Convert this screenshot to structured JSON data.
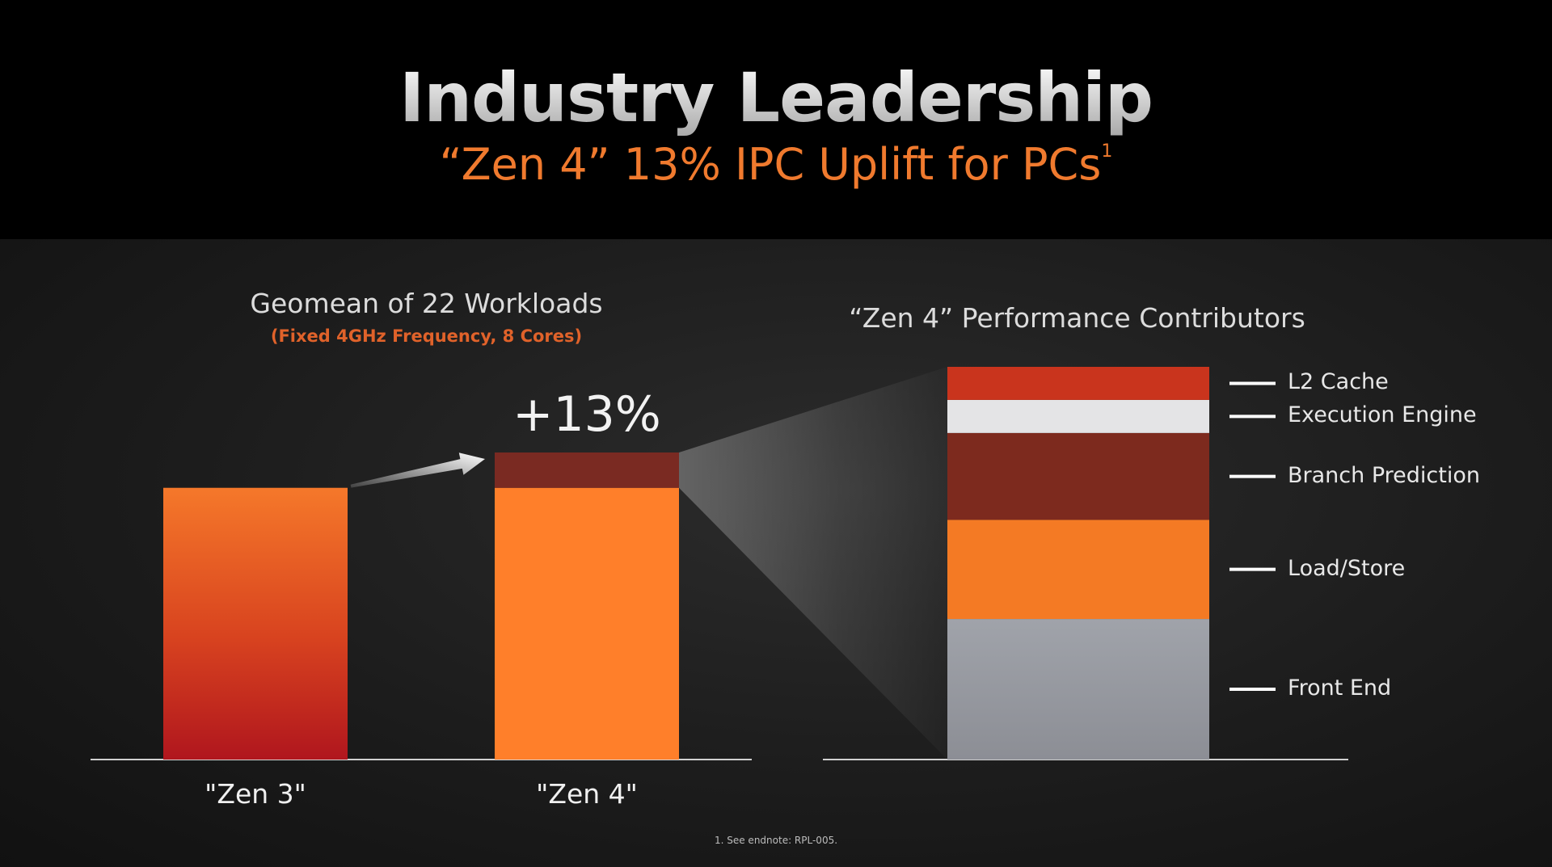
{
  "slide": {
    "title": "Industry Leadership",
    "subtitle": "“Zen 4” 13% IPC Uplift for PCs",
    "subtitle_sup": "1",
    "footnote": "1. See endnote: RPL-005."
  },
  "colors": {
    "accent_orange": "#f07a2e",
    "zen3_bar_top": "#f5782a",
    "zen3_bar_bottom": "#b0161e",
    "zen4_bar": "#ff7f2a",
    "uplift": "#7a2a22"
  },
  "chart_data": [
    {
      "type": "bar",
      "title": "Geomean of 22 Workloads",
      "subtitle": "(Fixed 4GHz Frequency, 8 Cores)",
      "categories": [
        "\"Zen 3\"",
        "\"Zen 4\""
      ],
      "values": [
        1.0,
        1.13
      ],
      "base_values": [
        1.0,
        1.0
      ],
      "uplift_label": "+13%",
      "ylim": [
        0,
        1.13
      ]
    },
    {
      "type": "bar",
      "stacked": true,
      "title": "“Zen 4” Performance Contributors",
      "series": [
        {
          "name": "Front End",
          "value": 0.34,
          "color": "#9a9ca3"
        },
        {
          "name": "Load/Store",
          "value": 0.24,
          "color": "#f47a24"
        },
        {
          "name": "Branch Prediction",
          "value": 0.21,
          "color": "#7d2a1e"
        },
        {
          "name": "Execution Engine",
          "value": 0.08,
          "color": "#e4e4e6"
        },
        {
          "name": "L2 Cache",
          "value": 0.08,
          "color": "#c9341d"
        }
      ],
      "legend": "right"
    }
  ]
}
